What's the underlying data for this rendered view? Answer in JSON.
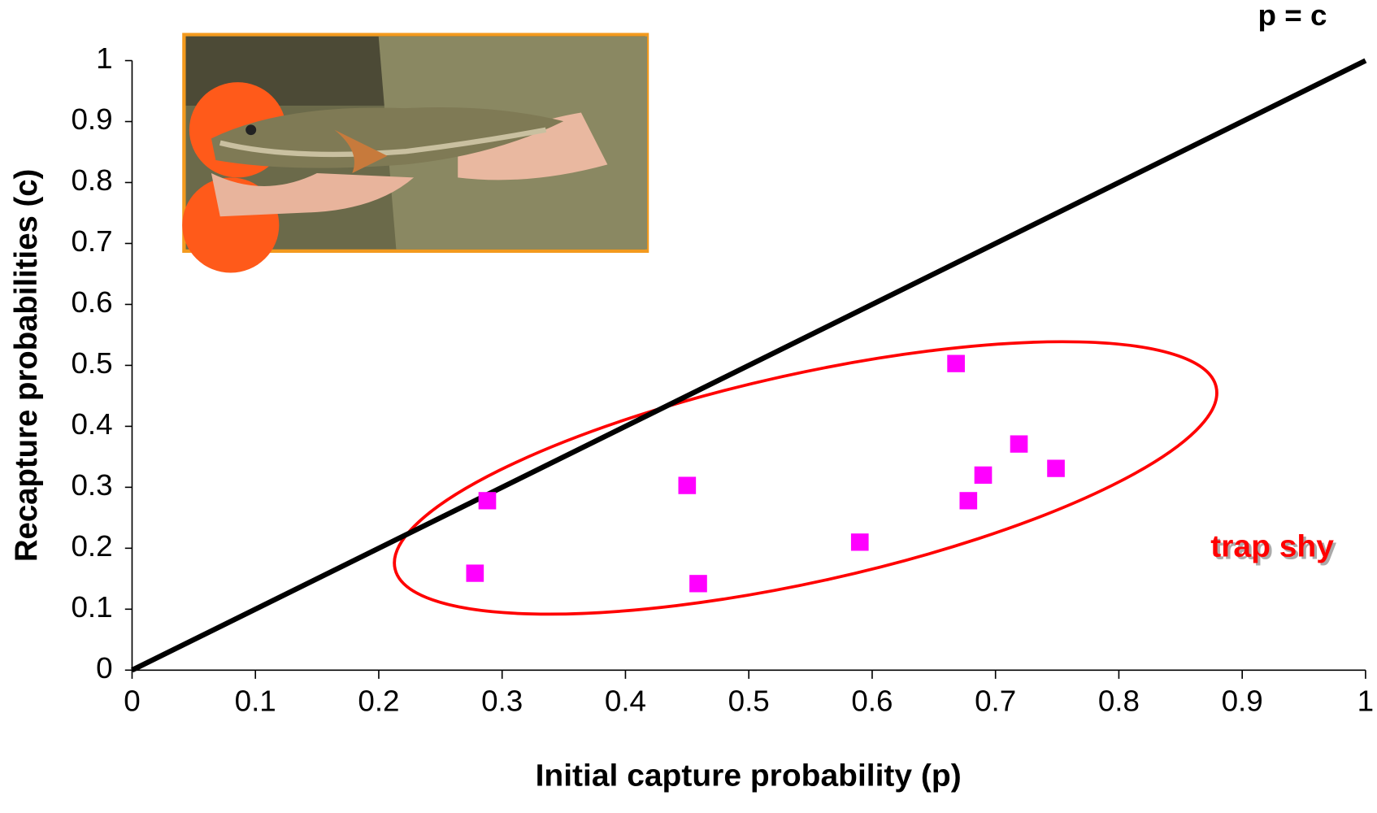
{
  "chart_data": {
    "type": "scatter",
    "x_label": "Initial capture probability (p)",
    "y_label": "Recapture probabilities (c)",
    "x": [
      0.278,
      0.288,
      0.45,
      0.459,
      0.59,
      0.668,
      0.678,
      0.69,
      0.719,
      0.749
    ],
    "values": [
      0.159,
      0.278,
      0.303,
      0.142,
      0.21,
      0.503,
      0.278,
      0.32,
      0.371,
      0.331
    ],
    "color": "#ff00ff",
    "reference_line": {
      "label": "p = c",
      "x": [
        0,
        1
      ],
      "values": [
        0,
        1
      ],
      "color": "#000000"
    },
    "annotation": "trap shy",
    "annotation_color": "#ff0000",
    "xlim": [
      0,
      1
    ],
    "ylim": [
      0,
      1
    ],
    "xticks": [
      0,
      0.1,
      0.2,
      0.3,
      0.4,
      0.5,
      0.6,
      0.7,
      0.8,
      0.9,
      1
    ],
    "yticks": [
      0,
      0.1,
      0.2,
      0.3,
      0.4,
      0.5,
      0.6,
      0.7,
      0.8,
      0.9,
      1
    ],
    "grid": false
  }
}
